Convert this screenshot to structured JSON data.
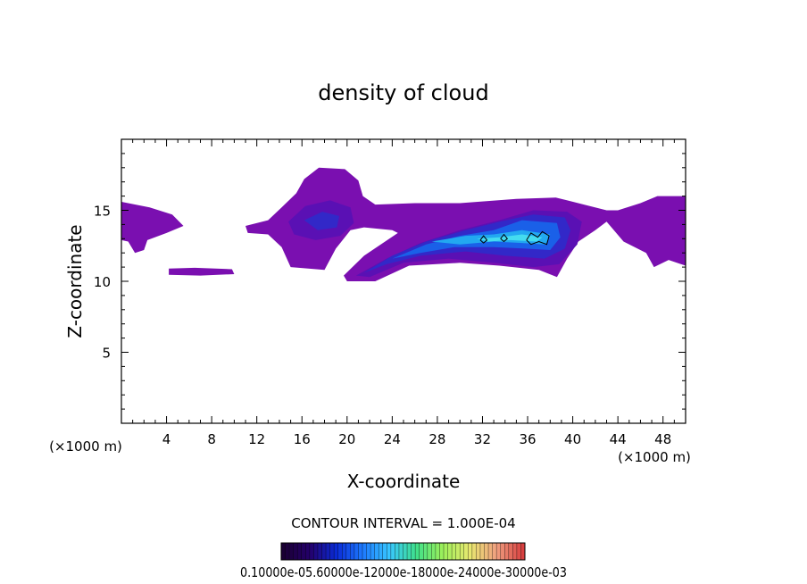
{
  "chart_data": {
    "type": "heatmap",
    "title": "density of cloud",
    "xlabel": "X-coordinate",
    "ylabel": "Z-coordinate",
    "x_unit": "(×1000 m)",
    "y_unit": "",
    "xlim": [
      0,
      50
    ],
    "ylim": [
      0,
      20
    ],
    "x_ticks": [
      4,
      8,
      12,
      16,
      20,
      24,
      28,
      32,
      36,
      40,
      44,
      48
    ],
    "y_ticks": [
      5,
      10,
      15
    ],
    "x_tick_labels": [
      "4",
      "8",
      "12",
      "16",
      "20",
      "24",
      "28",
      "32",
      "36",
      "40",
      "44",
      "48"
    ],
    "y_tick_labels": [
      "5",
      "10",
      "15"
    ],
    "x_unit_label_left": "(×1000 m)",
    "x_unit_label_right": "(×1000 m)",
    "contour_interval_text": "CONTOUR INTERVAL = 1.000E-04",
    "colorbar_labels_text": "0.10000e-05.60000e-12000e-18000e-24000e-30000e-03",
    "colorbar_colors": [
      "#1a0033",
      "#24006b",
      "#0a2bd6",
      "#1e7bff",
      "#38c7ff",
      "#3fe08a",
      "#9ef05a",
      "#e8e870",
      "#f0a080",
      "#d84040"
    ],
    "colors": {
      "level1": "#7a0fb0",
      "level2": "#5a10b4",
      "level3": "#3228c8",
      "level4": "#1a60e8",
      "level5": "#22a8f0",
      "level6": "#44dcf0",
      "level7": "#9af0e0",
      "contour": "#000000"
    },
    "regions": [
      {
        "level": 1,
        "points": [
          [
            0,
            15.6
          ],
          [
            2.5,
            15.2
          ],
          [
            4.5,
            14.7
          ],
          [
            5.5,
            13.9
          ],
          [
            4,
            13.4
          ],
          [
            2.3,
            12.9
          ],
          [
            2,
            12.2
          ],
          [
            1.2,
            12.0
          ],
          [
            0.6,
            12.8
          ],
          [
            0,
            12.9
          ]
        ]
      },
      {
        "level": 1,
        "points": [
          [
            4.2,
            10.9
          ],
          [
            6.5,
            10.95
          ],
          [
            9.8,
            10.85
          ],
          [
            10,
            10.5
          ],
          [
            7,
            10.4
          ],
          [
            4.2,
            10.45
          ]
        ]
      },
      {
        "level": 1,
        "points": [
          [
            11,
            13.9
          ],
          [
            13,
            14.3
          ],
          [
            14.2,
            15.2
          ],
          [
            15.5,
            16.2
          ],
          [
            16.2,
            17.2
          ],
          [
            17.5,
            18.0
          ],
          [
            19.8,
            17.9
          ],
          [
            21,
            17.1
          ],
          [
            21.4,
            16.0
          ],
          [
            22.5,
            15.4
          ],
          [
            26,
            15.5
          ],
          [
            30,
            15.5
          ],
          [
            35,
            15.8
          ],
          [
            38.5,
            15.9
          ],
          [
            41,
            15.4
          ],
          [
            43,
            15.0
          ],
          [
            44,
            15.0
          ],
          [
            46,
            15.5
          ],
          [
            47.5,
            16.0
          ],
          [
            50,
            16.0
          ],
          [
            50,
            11.1
          ],
          [
            48.5,
            11.5
          ],
          [
            47.2,
            11.0
          ],
          [
            46.5,
            12.0
          ],
          [
            44.5,
            12.8
          ],
          [
            43,
            14.2
          ],
          [
            42,
            13.6
          ],
          [
            40.5,
            12.8
          ],
          [
            39.5,
            11.6
          ],
          [
            38.6,
            10.3
          ],
          [
            37,
            10.8
          ],
          [
            33.5,
            11.1
          ],
          [
            30,
            11.3
          ],
          [
            25.5,
            11.1
          ],
          [
            22.5,
            10.0
          ],
          [
            20,
            10.0
          ],
          [
            19.7,
            10.4
          ],
          [
            21.5,
            11.8
          ],
          [
            24.5,
            13.4
          ],
          [
            24,
            13.6
          ],
          [
            21.5,
            13.8
          ],
          [
            20.3,
            13.6
          ],
          [
            19,
            12.3
          ],
          [
            18,
            10.8
          ],
          [
            15,
            11.0
          ],
          [
            14.2,
            12.4
          ],
          [
            13,
            13.3
          ],
          [
            11.2,
            13.4
          ]
        ]
      },
      {
        "level": 2,
        "points": [
          [
            14.8,
            14.2
          ],
          [
            16.3,
            15.3
          ],
          [
            18.5,
            15.7
          ],
          [
            20.3,
            15.2
          ],
          [
            20.6,
            14.1
          ],
          [
            19.4,
            13.2
          ],
          [
            17.2,
            12.9
          ],
          [
            15.3,
            13.3
          ]
        ]
      },
      {
        "level": 2,
        "points": [
          [
            20.8,
            10.4
          ],
          [
            23.5,
            11.6
          ],
          [
            26.5,
            12.7
          ],
          [
            30,
            13.6
          ],
          [
            33.5,
            14.3
          ],
          [
            36.5,
            15.0
          ],
          [
            39.5,
            14.9
          ],
          [
            40.8,
            14.2
          ],
          [
            40.4,
            12.6
          ],
          [
            38.8,
            11.2
          ],
          [
            36.5,
            11.0
          ],
          [
            33,
            11.3
          ],
          [
            29,
            11.6
          ],
          [
            25,
            11.3
          ],
          [
            22,
            10.3
          ]
        ]
      },
      {
        "level": 3,
        "points": [
          [
            16.2,
            14.3
          ],
          [
            17.8,
            14.9
          ],
          [
            19.3,
            14.6
          ],
          [
            19.1,
            13.8
          ],
          [
            17.4,
            13.6
          ]
        ]
      },
      {
        "level": 3,
        "points": [
          [
            21.5,
            10.6
          ],
          [
            24,
            11.8
          ],
          [
            27,
            12.8
          ],
          [
            30.5,
            13.6
          ],
          [
            33.5,
            14.2
          ],
          [
            36.5,
            14.7
          ],
          [
            39.3,
            14.5
          ],
          [
            39.8,
            13.6
          ],
          [
            39.3,
            12.3
          ],
          [
            37.5,
            11.6
          ],
          [
            34,
            11.8
          ],
          [
            30.5,
            12.1
          ],
          [
            26.5,
            11.8
          ],
          [
            23.5,
            11.2
          ]
        ]
      },
      {
        "level": 4,
        "points": [
          [
            24,
            11.6
          ],
          [
            27,
            12.6
          ],
          [
            30,
            13.2
          ],
          [
            33,
            13.6
          ],
          [
            35.5,
            14.3
          ],
          [
            38.6,
            14.1
          ],
          [
            38.9,
            13.1
          ],
          [
            38,
            12.2
          ],
          [
            35.8,
            12.3
          ],
          [
            33,
            12.4
          ],
          [
            29.5,
            12.4
          ],
          [
            26.5,
            12.0
          ]
        ]
      },
      {
        "level": 5,
        "points": [
          [
            27.5,
            12.8
          ],
          [
            30.5,
            13.2
          ],
          [
            33,
            13.3
          ],
          [
            35.5,
            13.6
          ],
          [
            38,
            13.3
          ],
          [
            37.6,
            12.6
          ],
          [
            35.5,
            12.7
          ],
          [
            33,
            12.8
          ],
          [
            30,
            12.6
          ]
        ]
      },
      {
        "level": 6,
        "points": [
          [
            31.5,
            13.0
          ],
          [
            33.5,
            13.1
          ],
          [
            35.5,
            13.3
          ],
          [
            37.3,
            13.1
          ],
          [
            36.8,
            12.8
          ],
          [
            34.5,
            12.9
          ],
          [
            32.5,
            12.8
          ]
        ]
      }
    ],
    "contours": [
      {
        "points": [
          [
            35.9,
            12.9
          ],
          [
            36.3,
            13.4
          ],
          [
            36.9,
            13.1
          ],
          [
            37.3,
            13.5
          ],
          [
            37.9,
            13.2
          ],
          [
            37.7,
            12.6
          ],
          [
            37.0,
            12.8
          ],
          [
            36.3,
            12.6
          ],
          [
            35.9,
            12.9
          ]
        ]
      },
      {
        "points": [
          [
            33.6,
            13.0
          ],
          [
            33.9,
            13.3
          ],
          [
            34.2,
            13.0
          ],
          [
            33.9,
            12.8
          ],
          [
            33.6,
            13.0
          ]
        ]
      },
      {
        "points": [
          [
            31.8,
            12.9
          ],
          [
            32.1,
            13.2
          ],
          [
            32.4,
            12.9
          ],
          [
            32.1,
            12.7
          ],
          [
            31.8,
            12.9
          ]
        ]
      }
    ]
  }
}
